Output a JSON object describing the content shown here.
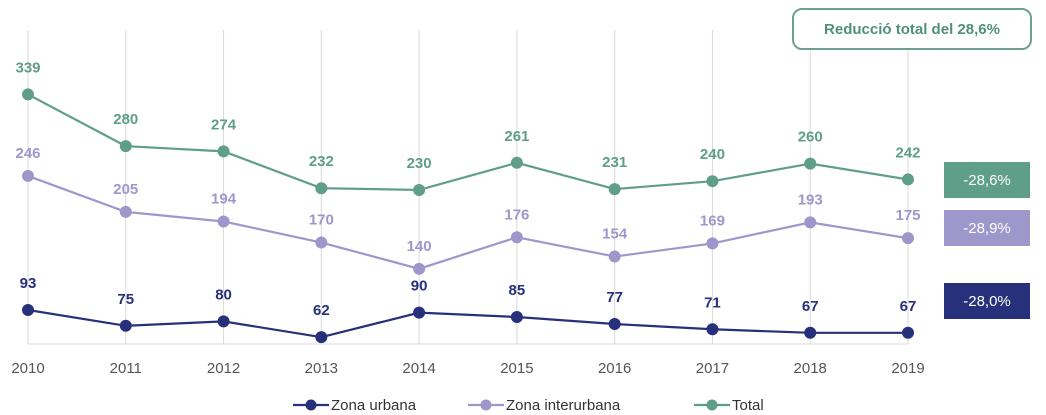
{
  "summary_label": "Reducció total del 28,6%",
  "colors": {
    "urbana": "#27307a",
    "interurbana": "#9e97cc",
    "total": "#5f9e88",
    "grid": "#d9d9d9",
    "axis_text": "#555555"
  },
  "chart_data": {
    "type": "line",
    "x": [
      "2010",
      "2011",
      "2012",
      "2013",
      "2014",
      "2015",
      "2016",
      "2017",
      "2018",
      "2019"
    ],
    "ylim": [
      0,
      360
    ],
    "grid": true,
    "legend_placement": "bottom",
    "series": [
      {
        "key": "urbana",
        "name": "Zona urbana",
        "values": [
          93,
          75,
          80,
          62,
          90,
          85,
          77,
          71,
          67,
          67
        ],
        "change": "-28,0%"
      },
      {
        "key": "interurbana",
        "name": "Zona interurbana",
        "values": [
          246,
          205,
          194,
          170,
          140,
          176,
          154,
          169,
          193,
          175
        ],
        "change": "-28,9%"
      },
      {
        "key": "total",
        "name": "Total",
        "values": [
          339,
          280,
          274,
          232,
          230,
          261,
          231,
          240,
          260,
          242
        ],
        "change": "-28,6%"
      }
    ]
  }
}
